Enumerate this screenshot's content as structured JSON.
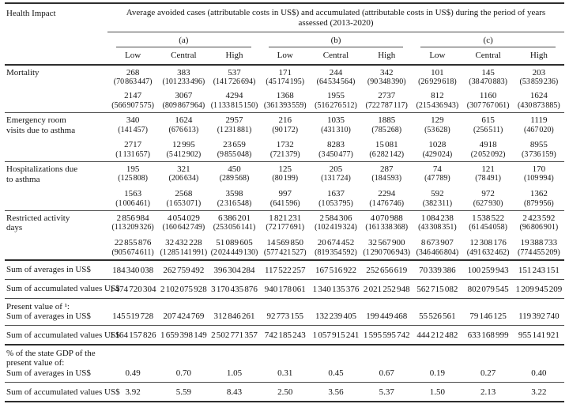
{
  "table": {
    "corner_label": "Health Impact",
    "main_header": "Average avoided cases (attributable costs in US$) and accumulated (attributable costs in US$) during the period of years assessed (2013-2020)",
    "groups": [
      "(a)",
      "(b)",
      "(c)"
    ],
    "subheaders": [
      "Low",
      "Central",
      "High",
      "Low",
      "Central",
      "High",
      "Low",
      "Central",
      "High"
    ],
    "impacts": [
      {
        "label_lines": [
          "Mortality"
        ],
        "rule": "thin",
        "avg": [
          {
            "v": "268",
            "c": "(70 863 447)"
          },
          {
            "v": "383",
            "c": "(101 233 496)"
          },
          {
            "v": "537",
            "c": "(141 726 694)"
          },
          {
            "v": "171",
            "c": "(45 174 195)"
          },
          {
            "v": "244",
            "c": "(64 534 564)"
          },
          {
            "v": "342",
            "c": "(90 348 390)"
          },
          {
            "v": "101",
            "c": "(26 929 618)"
          },
          {
            "v": "145",
            "c": "(38 470 883)"
          },
          {
            "v": "203",
            "c": "(53 859 236)"
          }
        ],
        "acc": [
          {
            "v": "2147",
            "c": "(566 907 575)"
          },
          {
            "v": "3067",
            "c": "(809 867 964)"
          },
          {
            "v": "4294",
            "c": "(1 133 815 150)"
          },
          {
            "v": "1368",
            "c": "(361 393 559)"
          },
          {
            "v": "1955",
            "c": "(516 276 512)"
          },
          {
            "v": "2737",
            "c": "(722 787 117)"
          },
          {
            "v": "812",
            "c": "(215 436 943)"
          },
          {
            "v": "1160",
            "c": "(307 767 061)"
          },
          {
            "v": "1624",
            "c": "(430 873 885)"
          }
        ]
      },
      {
        "label_lines": [
          "Emergency room",
          "visits due to asthma"
        ],
        "rule": "thin",
        "avg": [
          {
            "v": "340",
            "c": "(141 457)"
          },
          {
            "v": "1624",
            "c": "(676 613)"
          },
          {
            "v": "2957",
            "c": "(1 231 881)"
          },
          {
            "v": "216",
            "c": "(90 172)"
          },
          {
            "v": "1035",
            "c": "(431 310)"
          },
          {
            "v": "1885",
            "c": "(785 268)"
          },
          {
            "v": "129",
            "c": "(53 628)"
          },
          {
            "v": "615",
            "c": "(256 511)"
          },
          {
            "v": "1119",
            "c": "(467 020)"
          }
        ],
        "acc": [
          {
            "v": "2717",
            "c": "(1 131 657)"
          },
          {
            "v": "12 995",
            "c": "(5 412 902)"
          },
          {
            "v": "23 659",
            "c": "(9 855 048)"
          },
          {
            "v": "1732",
            "c": "(721 379)"
          },
          {
            "v": "8283",
            "c": "(3 450 477)"
          },
          {
            "v": "15 081",
            "c": "(6 282 142)"
          },
          {
            "v": "1028",
            "c": "(429 024)"
          },
          {
            "v": "4918",
            "c": "(2 052 092)"
          },
          {
            "v": "8955",
            "c": "(3 736 159)"
          }
        ]
      },
      {
        "label_lines": [
          "Hospitalizations due",
          "to asthma"
        ],
        "rule": "thin",
        "avg": [
          {
            "v": "195",
            "c": "(125 808)"
          },
          {
            "v": "321",
            "c": "(206 634)"
          },
          {
            "v": "450",
            "c": "(289 568)"
          },
          {
            "v": "125",
            "c": "(80 199)"
          },
          {
            "v": "205",
            "c": "(131 724)"
          },
          {
            "v": "287",
            "c": "(184 593)"
          },
          {
            "v": "74",
            "c": "(47 789)"
          },
          {
            "v": "121",
            "c": "(78 491)"
          },
          {
            "v": "170",
            "c": "(109 994)"
          }
        ],
        "acc": [
          {
            "v": "1563",
            "c": "(1 006 461)"
          },
          {
            "v": "2568",
            "c": "(1 653 071)"
          },
          {
            "v": "3598",
            "c": "(2 316 548)"
          },
          {
            "v": "997",
            "c": "(641 596)"
          },
          {
            "v": "1637",
            "c": "(1 053 795)"
          },
          {
            "v": "2294",
            "c": "(1 476 746)"
          },
          {
            "v": "592",
            "c": "(382 311)"
          },
          {
            "v": "972",
            "c": "(627 930)"
          },
          {
            "v": "1362",
            "c": "(879 956)"
          }
        ]
      },
      {
        "label_lines": [
          "Restricted activity",
          "days"
        ],
        "rule": "thick",
        "avg": [
          {
            "v": "2 856 984",
            "c": "(113 209 326)"
          },
          {
            "v": "4 054 029",
            "c": "(160 642 749)"
          },
          {
            "v": "6 386 201",
            "c": "(253 056 141)"
          },
          {
            "v": "1 821 231",
            "c": "(72 177 691)"
          },
          {
            "v": "2 584 306",
            "c": "(102 419 324)"
          },
          {
            "v": "4 070 988",
            "c": "(161 338 368)"
          },
          {
            "v": "1 084 238",
            "c": "(43 308 351)"
          },
          {
            "v": "1 538 522",
            "c": "(61 454 058)"
          },
          {
            "v": "2 423 592",
            "c": "(96 806 901)"
          }
        ],
        "acc": [
          {
            "v": "22 855 876",
            "c": "(905 674 611)"
          },
          {
            "v": "32 432 228",
            "c": "(1 285 141 991)"
          },
          {
            "v": "51 089 605",
            "c": "(2 024 449 130)"
          },
          {
            "v": "14 569 850",
            "c": "(577 421 527)"
          },
          {
            "v": "20 674 452",
            "c": "(819 354 592)"
          },
          {
            "v": "32 567 900",
            "c": "(1 290 706 943)"
          },
          {
            "v": "8 673 907",
            "c": "(346 466 804)"
          },
          {
            "v": "12 308 176",
            "c": "(491 632 462)"
          },
          {
            "v": "19 388 733",
            "c": "(774 455 209)"
          }
        ]
      }
    ],
    "summary": [
      {
        "section": [],
        "label": "Sum of averages in US$",
        "rule": "thin",
        "values": [
          "184 340 038",
          "262 759 492",
          "396 304 284",
          "117 522 257",
          "167 516 922",
          "252 656 619",
          "70 339 386",
          "100 259 943",
          "151 243 151"
        ]
      },
      {
        "section": [],
        "label": "Sum of accumulated values US$",
        "rule": "thin",
        "values": [
          "1 474 720 304",
          "2 102 075 928",
          "3 170 435 876",
          "940 178 061",
          "1 340 135 376",
          "2 021 252 948",
          "562 715 082",
          "802 079 545",
          "1 209 945 209"
        ]
      },
      {
        "section": [
          "Present value of ¹:"
        ],
        "label": "Sum of averages in US$",
        "rule": "thin",
        "values": [
          "145 519 728",
          "207 424 769",
          "312 846 261",
          "92 773 155",
          "132 239 405",
          "199 449 468",
          "55 526 561",
          "79 146 125",
          "119 392 740"
        ]
      },
      {
        "section": [],
        "label": "Sum of accumulated values US$",
        "rule": "thick",
        "values": [
          "1 164 157 826",
          "1 659 398 149",
          "2 502 771 357",
          "742 185 243",
          "1 057 915 241",
          "1 595 595 742",
          "444 212 482",
          "633 168 999",
          "955 141 921"
        ]
      },
      {
        "section": [
          "% of the state GDP of the",
          "present value of:"
        ],
        "label": "Sum of averages in US$",
        "rule": "thin",
        "values": [
          "0.49",
          "0.70",
          "1.05",
          "0.31",
          "0.45",
          "0.67",
          "0.19",
          "0.27",
          "0.40"
        ]
      },
      {
        "section": [],
        "label": "Sum of accumulated values US$",
        "rule": "thick",
        "values": [
          "3.92",
          "5.59",
          "8.43",
          "2.50",
          "3.56",
          "5.37",
          "1.50",
          "2.13",
          "3.22"
        ]
      }
    ]
  }
}
